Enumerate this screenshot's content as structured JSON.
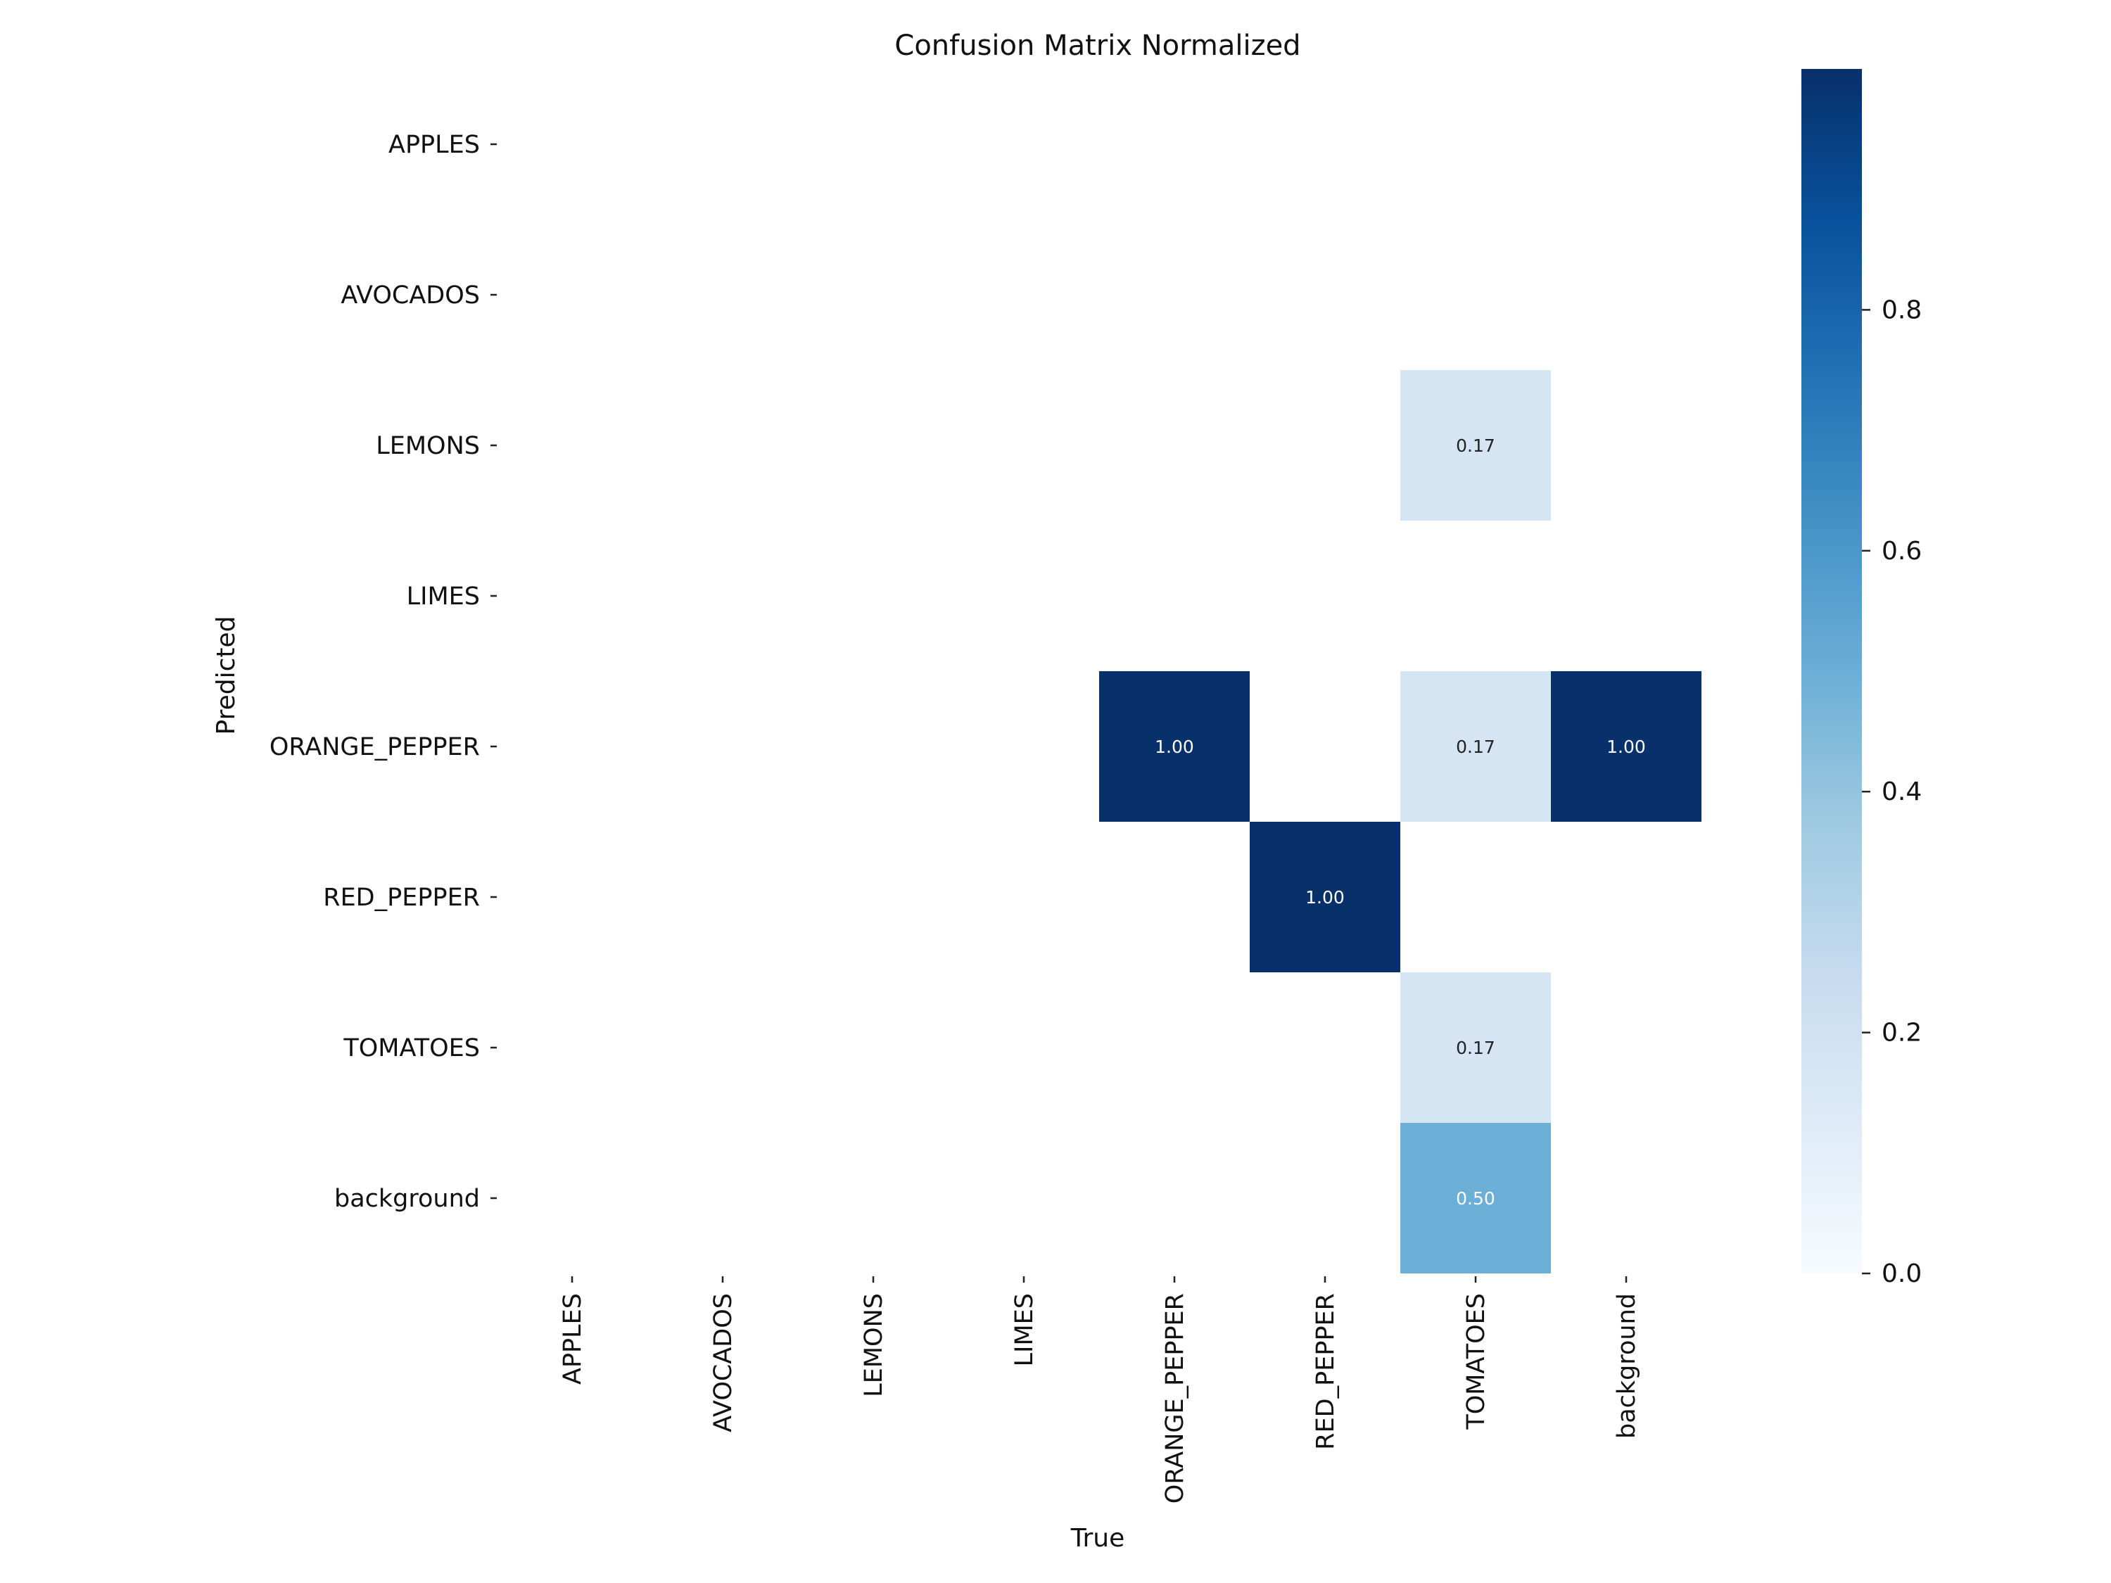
{
  "chart_data": {
    "type": "heatmap",
    "title": "Confusion Matrix Normalized",
    "xlabel": "True",
    "ylabel": "Predicted",
    "x_categories": [
      "APPLES",
      "AVOCADOS",
      "LEMONS",
      "LIMES",
      "ORANGE_PEPPER",
      "RED_PEPPER",
      "TOMATOES",
      "background"
    ],
    "y_categories": [
      "APPLES",
      "AVOCADOS",
      "LEMONS",
      "LIMES",
      "ORANGE_PEPPER",
      "RED_PEPPER",
      "TOMATOES",
      "background"
    ],
    "cells": [
      {
        "row": "LEMONS",
        "col": "TOMATOES",
        "value": 0.17,
        "label": "0.17"
      },
      {
        "row": "ORANGE_PEPPER",
        "col": "ORANGE_PEPPER",
        "value": 1.0,
        "label": "1.00"
      },
      {
        "row": "ORANGE_PEPPER",
        "col": "TOMATOES",
        "value": 0.17,
        "label": "0.17"
      },
      {
        "row": "ORANGE_PEPPER",
        "col": "background",
        "value": 1.0,
        "label": "1.00"
      },
      {
        "row": "RED_PEPPER",
        "col": "RED_PEPPER",
        "value": 1.0,
        "label": "1.00"
      },
      {
        "row": "TOMATOES",
        "col": "TOMATOES",
        "value": 0.17,
        "label": "0.17"
      },
      {
        "row": "background",
        "col": "TOMATOES",
        "value": 0.5,
        "label": "0.50"
      }
    ],
    "empty_cells": "blank (no value drawn)",
    "colormap": "Blues",
    "colorbar": {
      "range": [
        0.0,
        1.0
      ],
      "ticks": [
        0.0,
        0.2,
        0.4,
        0.6,
        0.8
      ],
      "tick_labels": [
        "0.0",
        "0.2",
        "0.4",
        "0.6",
        "0.8"
      ],
      "position": "right"
    },
    "grid": false,
    "legend": "none"
  }
}
